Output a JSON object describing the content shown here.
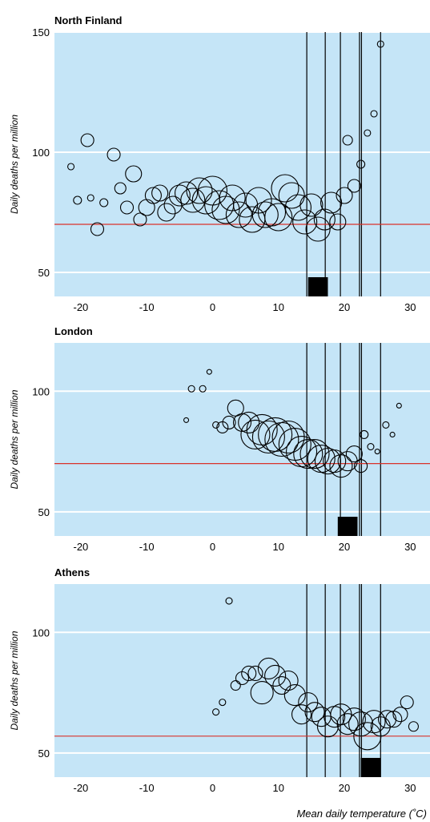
{
  "colors": {
    "plot_bg": "#c5e5f7",
    "grid": "#ffffff",
    "ref_line": "#d9332b",
    "bubble_stroke": "#000000",
    "marker": "#000000"
  },
  "x_axis": {
    "label": "Mean daily temperature (˚C)",
    "ticks": [
      -20,
      -10,
      0,
      10,
      20,
      30
    ],
    "tick_labels": [
      "-20",
      "-10",
      "0",
      "10",
      "20",
      "30"
    ],
    "range": [
      -24,
      33
    ]
  },
  "shared_vertical_lines_x": [
    14.3,
    17.1,
    19.4,
    22.3,
    22.6,
    25.5
  ],
  "chart_data": [
    {
      "type": "scatter",
      "title": "North Finland",
      "ylabel": "Daily deaths per million",
      "ylim": [
        40,
        150
      ],
      "yticks": [
        50,
        100,
        150
      ],
      "ytick_labels": [
        "50",
        "100",
        "150"
      ],
      "reference_y": 70,
      "marker_band_x": [
        14.5,
        17.5
      ],
      "points": [
        {
          "x": -21.5,
          "y": 94,
          "r": 4
        },
        {
          "x": -20.5,
          "y": 80,
          "r": 5
        },
        {
          "x": -19,
          "y": 105,
          "r": 8
        },
        {
          "x": -18.5,
          "y": 81,
          "r": 4
        },
        {
          "x": -17.5,
          "y": 68,
          "r": 8
        },
        {
          "x": -16.5,
          "y": 79,
          "r": 5
        },
        {
          "x": -15,
          "y": 99,
          "r": 8
        },
        {
          "x": -14,
          "y": 85,
          "r": 7
        },
        {
          "x": -13,
          "y": 77,
          "r": 8
        },
        {
          "x": -12,
          "y": 91,
          "r": 10
        },
        {
          "x": -11,
          "y": 72,
          "r": 8
        },
        {
          "x": -10,
          "y": 77,
          "r": 10
        },
        {
          "x": -9,
          "y": 82,
          "r": 10
        },
        {
          "x": -8,
          "y": 83,
          "r": 10
        },
        {
          "x": -7,
          "y": 75,
          "r": 11
        },
        {
          "x": -6,
          "y": 78,
          "r": 11
        },
        {
          "x": -5,
          "y": 82,
          "r": 13
        },
        {
          "x": -4,
          "y": 83,
          "r": 14
        },
        {
          "x": -3,
          "y": 80,
          "r": 15
        },
        {
          "x": -2,
          "y": 84,
          "r": 16
        },
        {
          "x": -1,
          "y": 80,
          "r": 17
        },
        {
          "x": 0,
          "y": 84,
          "r": 18
        },
        {
          "x": 1,
          "y": 78,
          "r": 18
        },
        {
          "x": 2,
          "y": 76,
          "r": 17
        },
        {
          "x": 3,
          "y": 81,
          "r": 16
        },
        {
          "x": 4,
          "y": 74,
          "r": 16
        },
        {
          "x": 5,
          "y": 78,
          "r": 15
        },
        {
          "x": 6,
          "y": 72,
          "r": 16
        },
        {
          "x": 7,
          "y": 80,
          "r": 16
        },
        {
          "x": 8,
          "y": 74,
          "r": 16
        },
        {
          "x": 9,
          "y": 75,
          "r": 17
        },
        {
          "x": 10,
          "y": 73,
          "r": 17
        },
        {
          "x": 11,
          "y": 85,
          "r": 17
        },
        {
          "x": 12,
          "y": 82,
          "r": 16
        },
        {
          "x": 13,
          "y": 77,
          "r": 16
        },
        {
          "x": 14,
          "y": 71,
          "r": 15
        },
        {
          "x": 15,
          "y": 78,
          "r": 14
        },
        {
          "x": 16,
          "y": 68,
          "r": 15
        },
        {
          "x": 17,
          "y": 72,
          "r": 13
        },
        {
          "x": 18,
          "y": 79,
          "r": 13
        },
        {
          "x": 19,
          "y": 71,
          "r": 10
        },
        {
          "x": 20,
          "y": 82,
          "r": 10
        },
        {
          "x": 20.5,
          "y": 105,
          "r": 6
        },
        {
          "x": 21.5,
          "y": 86,
          "r": 8
        },
        {
          "x": 22.5,
          "y": 95,
          "r": 5
        },
        {
          "x": 23.5,
          "y": 108,
          "r": 4
        },
        {
          "x": 24.5,
          "y": 116,
          "r": 4
        },
        {
          "x": 25.5,
          "y": 145,
          "r": 4
        }
      ]
    },
    {
      "type": "scatter",
      "title": "London",
      "ylabel": "Daily deaths per million",
      "ylim": [
        40,
        120
      ],
      "yticks": [
        50,
        100
      ],
      "ytick_labels": [
        "50",
        "100"
      ],
      "reference_y": 70,
      "marker_band_x": [
        19,
        22
      ],
      "points": [
        {
          "x": -4,
          "y": 88,
          "r": 3
        },
        {
          "x": -3.2,
          "y": 101,
          "r": 4
        },
        {
          "x": -1.5,
          "y": 101,
          "r": 4
        },
        {
          "x": -0.5,
          "y": 108,
          "r": 3
        },
        {
          "x": 0.5,
          "y": 86,
          "r": 4
        },
        {
          "x": 1.5,
          "y": 85,
          "r": 7
        },
        {
          "x": 2.5,
          "y": 87,
          "r": 8
        },
        {
          "x": 3.5,
          "y": 93,
          "r": 10
        },
        {
          "x": 4.5,
          "y": 87,
          "r": 11
        },
        {
          "x": 5.5,
          "y": 87,
          "r": 13
        },
        {
          "x": 6.5,
          "y": 82,
          "r": 18
        },
        {
          "x": 7.5,
          "y": 84,
          "r": 19
        },
        {
          "x": 8.5,
          "y": 81,
          "r": 20
        },
        {
          "x": 9.5,
          "y": 82,
          "r": 21
        },
        {
          "x": 10.5,
          "y": 80,
          "r": 21
        },
        {
          "x": 11.5,
          "y": 81,
          "r": 20
        },
        {
          "x": 12.5,
          "y": 78,
          "r": 20
        },
        {
          "x": 13.5,
          "y": 75,
          "r": 19
        },
        {
          "x": 14.5,
          "y": 74,
          "r": 18
        },
        {
          "x": 15.5,
          "y": 74,
          "r": 18
        },
        {
          "x": 16.5,
          "y": 72,
          "r": 17
        },
        {
          "x": 17.5,
          "y": 71,
          "r": 16
        },
        {
          "x": 18.5,
          "y": 71,
          "r": 14
        },
        {
          "x": 19.5,
          "y": 69,
          "r": 14
        },
        {
          "x": 20.5,
          "y": 71,
          "r": 12
        },
        {
          "x": 21.5,
          "y": 74,
          "r": 10
        },
        {
          "x": 22.5,
          "y": 69,
          "r": 8
        },
        {
          "x": 23,
          "y": 82,
          "r": 5
        },
        {
          "x": 24,
          "y": 77,
          "r": 4
        },
        {
          "x": 25,
          "y": 75,
          "r": 3
        },
        {
          "x": 26.3,
          "y": 86,
          "r": 4
        },
        {
          "x": 27.3,
          "y": 82,
          "r": 3
        },
        {
          "x": 28.3,
          "y": 94,
          "r": 3
        }
      ]
    },
    {
      "type": "scatter",
      "title": "Athens",
      "ylabel": "Daily deaths per million",
      "ylim": [
        40,
        120
      ],
      "yticks": [
        50,
        100
      ],
      "ytick_labels": [
        "50",
        "100"
      ],
      "reference_y": 57,
      "marker_band_x": [
        22.5,
        25.5
      ],
      "points": [
        {
          "x": 0.5,
          "y": 67,
          "r": 4
        },
        {
          "x": 1.5,
          "y": 71,
          "r": 4
        },
        {
          "x": 2.5,
          "y": 113,
          "r": 4
        },
        {
          "x": 3.5,
          "y": 78,
          "r": 6
        },
        {
          "x": 4.5,
          "y": 81,
          "r": 8
        },
        {
          "x": 5.5,
          "y": 83,
          "r": 9
        },
        {
          "x": 6.5,
          "y": 83,
          "r": 9
        },
        {
          "x": 7.5,
          "y": 75,
          "r": 14
        },
        {
          "x": 8.5,
          "y": 85,
          "r": 13
        },
        {
          "x": 9.5,
          "y": 82,
          "r": 13
        },
        {
          "x": 10.5,
          "y": 78,
          "r": 11
        },
        {
          "x": 11.5,
          "y": 80,
          "r": 12
        },
        {
          "x": 12.5,
          "y": 74,
          "r": 13
        },
        {
          "x": 13.5,
          "y": 66,
          "r": 12
        },
        {
          "x": 14.5,
          "y": 71,
          "r": 12
        },
        {
          "x": 15.5,
          "y": 67,
          "r": 12
        },
        {
          "x": 16.5,
          "y": 65,
          "r": 12
        },
        {
          "x": 17.5,
          "y": 61,
          "r": 13
        },
        {
          "x": 18.5,
          "y": 65,
          "r": 13
        },
        {
          "x": 19.5,
          "y": 66,
          "r": 13
        },
        {
          "x": 20.5,
          "y": 62,
          "r": 13
        },
        {
          "x": 21.5,
          "y": 64,
          "r": 14
        },
        {
          "x": 22.5,
          "y": 62,
          "r": 15
        },
        {
          "x": 23.5,
          "y": 57,
          "r": 17
        },
        {
          "x": 24.5,
          "y": 63,
          "r": 14
        },
        {
          "x": 25.5,
          "y": 61,
          "r": 12
        },
        {
          "x": 26.5,
          "y": 64,
          "r": 11
        },
        {
          "x": 27.5,
          "y": 64,
          "r": 10
        },
        {
          "x": 28.5,
          "y": 66,
          "r": 9
        },
        {
          "x": 29.5,
          "y": 71,
          "r": 8
        },
        {
          "x": 30.5,
          "y": 61,
          "r": 6
        }
      ]
    }
  ]
}
